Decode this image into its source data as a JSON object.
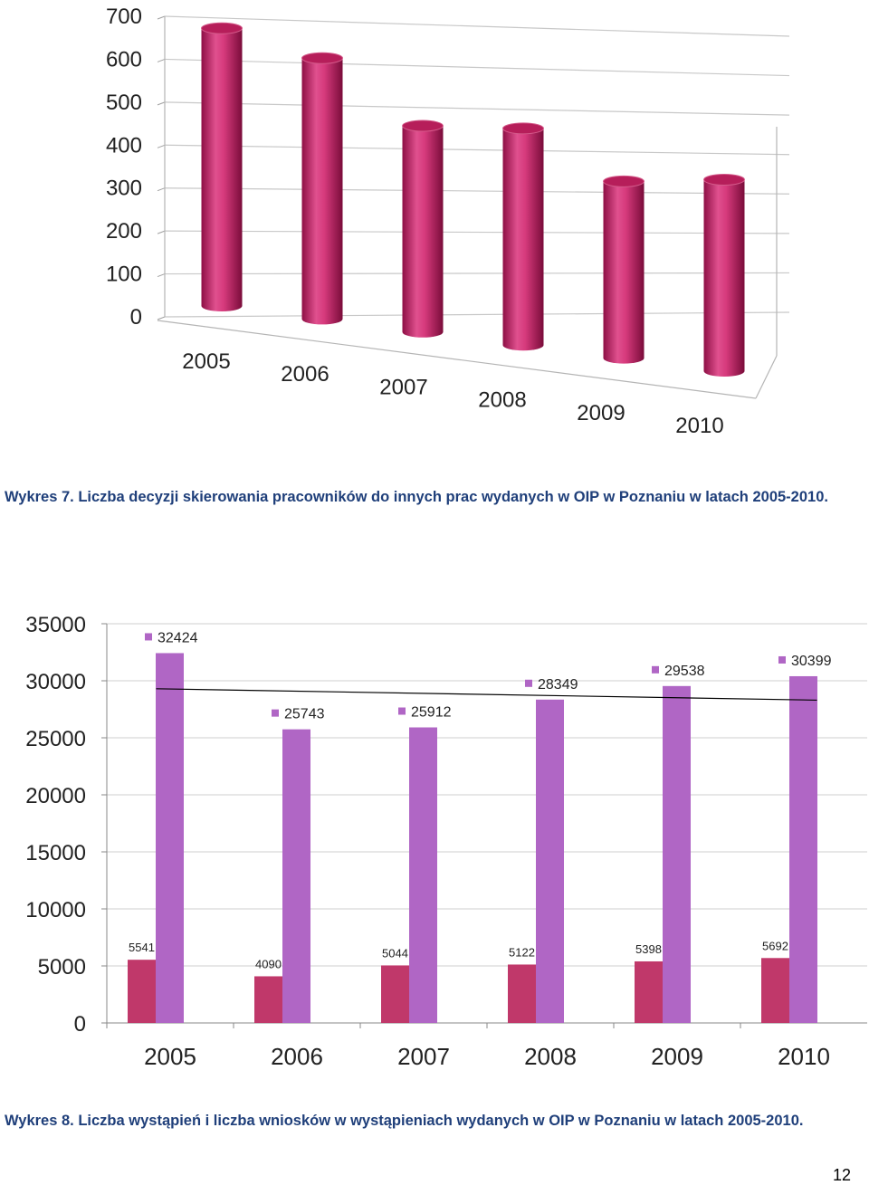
{
  "chart_data": [
    {
      "type": "bar",
      "style": "3d-cylinder",
      "categories": [
        "2005",
        "2006",
        "2007",
        "2008",
        "2009",
        "2010"
      ],
      "series": [
        {
          "values": [
            660,
            620,
            490,
            515,
            420,
            455
          ],
          "color": "#c2185b"
        }
      ],
      "yticks": [
        "0",
        "100",
        "200",
        "300",
        "400",
        "500",
        "600",
        "700"
      ],
      "ylim": [
        0,
        700
      ],
      "grid": true
    },
    {
      "type": "bar",
      "categories": [
        "2005",
        "2006",
        "2007",
        "2008",
        "2009",
        "2010"
      ],
      "series": [
        {
          "values": [
            5541,
            4090,
            5044,
            5122,
            5398,
            5692
          ],
          "color": "#c0386a",
          "labels": [
            "5541",
            "4090",
            "5044",
            "5122",
            "5398",
            "5692"
          ]
        },
        {
          "values": [
            32424,
            25743,
            25912,
            28349,
            29538,
            30399
          ],
          "color": "#b066c5",
          "labels": [
            "32424",
            "25743",
            "25912",
            "28349",
            "29538",
            "30399"
          ]
        }
      ],
      "trendline": {
        "series": 1,
        "from": 29300,
        "to": 28300,
        "color": "#000000"
      },
      "yticks": [
        "0",
        "5000",
        "10000",
        "15000",
        "20000",
        "25000",
        "30000",
        "35000"
      ],
      "ylim": [
        0,
        35000
      ],
      "grid": true
    }
  ],
  "captions": {
    "chart1": "Wykres 7. Liczba decyzji skierowania pracowników do innych prac wydanych w OIP w Poznaniu w latach 2005-2010.",
    "chart2": "Wykres 8. Liczba wystąpień i liczba wniosków w wystąpieniach wydanych w OIP w Poznaniu w latach 2005-2010."
  },
  "page_number": "12"
}
